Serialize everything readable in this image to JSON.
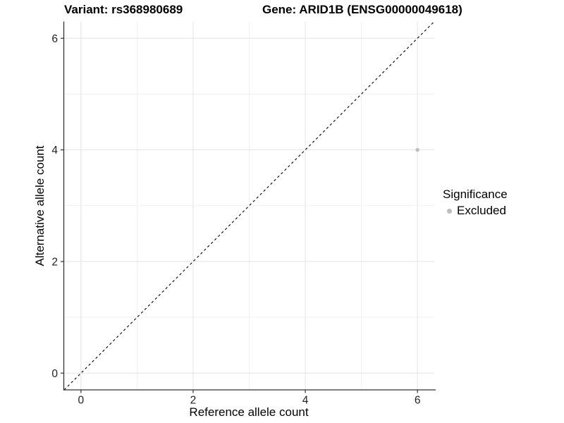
{
  "header": {
    "title_left": "Variant: rs368980689",
    "title_right": "Gene: ARID1B (ENSG00000049618)"
  },
  "chart_data": {
    "type": "scatter",
    "title_left": "Variant: rs368980689",
    "title_right": "Gene: ARID1B (ENSG00000049618)",
    "xlabel": "Reference allele count",
    "ylabel": "Alternative allele count",
    "xlim": [
      -0.3,
      6.3
    ],
    "ylim": [
      -0.3,
      6.3
    ],
    "x_ticks": [
      0,
      2,
      4,
      6
    ],
    "y_ticks": [
      0,
      2,
      4,
      6
    ],
    "x_minor_ticks": [
      1,
      3,
      5
    ],
    "y_minor_ticks": [
      1,
      3,
      5
    ],
    "grid": true,
    "series": [
      {
        "name": "Excluded",
        "color": "#bdbdbd",
        "points": [
          [
            6,
            4
          ]
        ]
      }
    ],
    "reference_line": {
      "kind": "y=x",
      "style": "dashed",
      "color": "#000000"
    },
    "legend": {
      "position": "right",
      "title": "Significance",
      "items": [
        {
          "label": "Excluded",
          "color": "#bdbdbd"
        }
      ]
    }
  },
  "colors": {
    "background": "#ffffff",
    "grid_major": "#e3e3e3",
    "grid_minor": "#f1f1f1",
    "axis_line": "#333333",
    "tick_mark": "#333333",
    "tick_text": "#1f1f1f",
    "point": "#bdbdbd"
  }
}
